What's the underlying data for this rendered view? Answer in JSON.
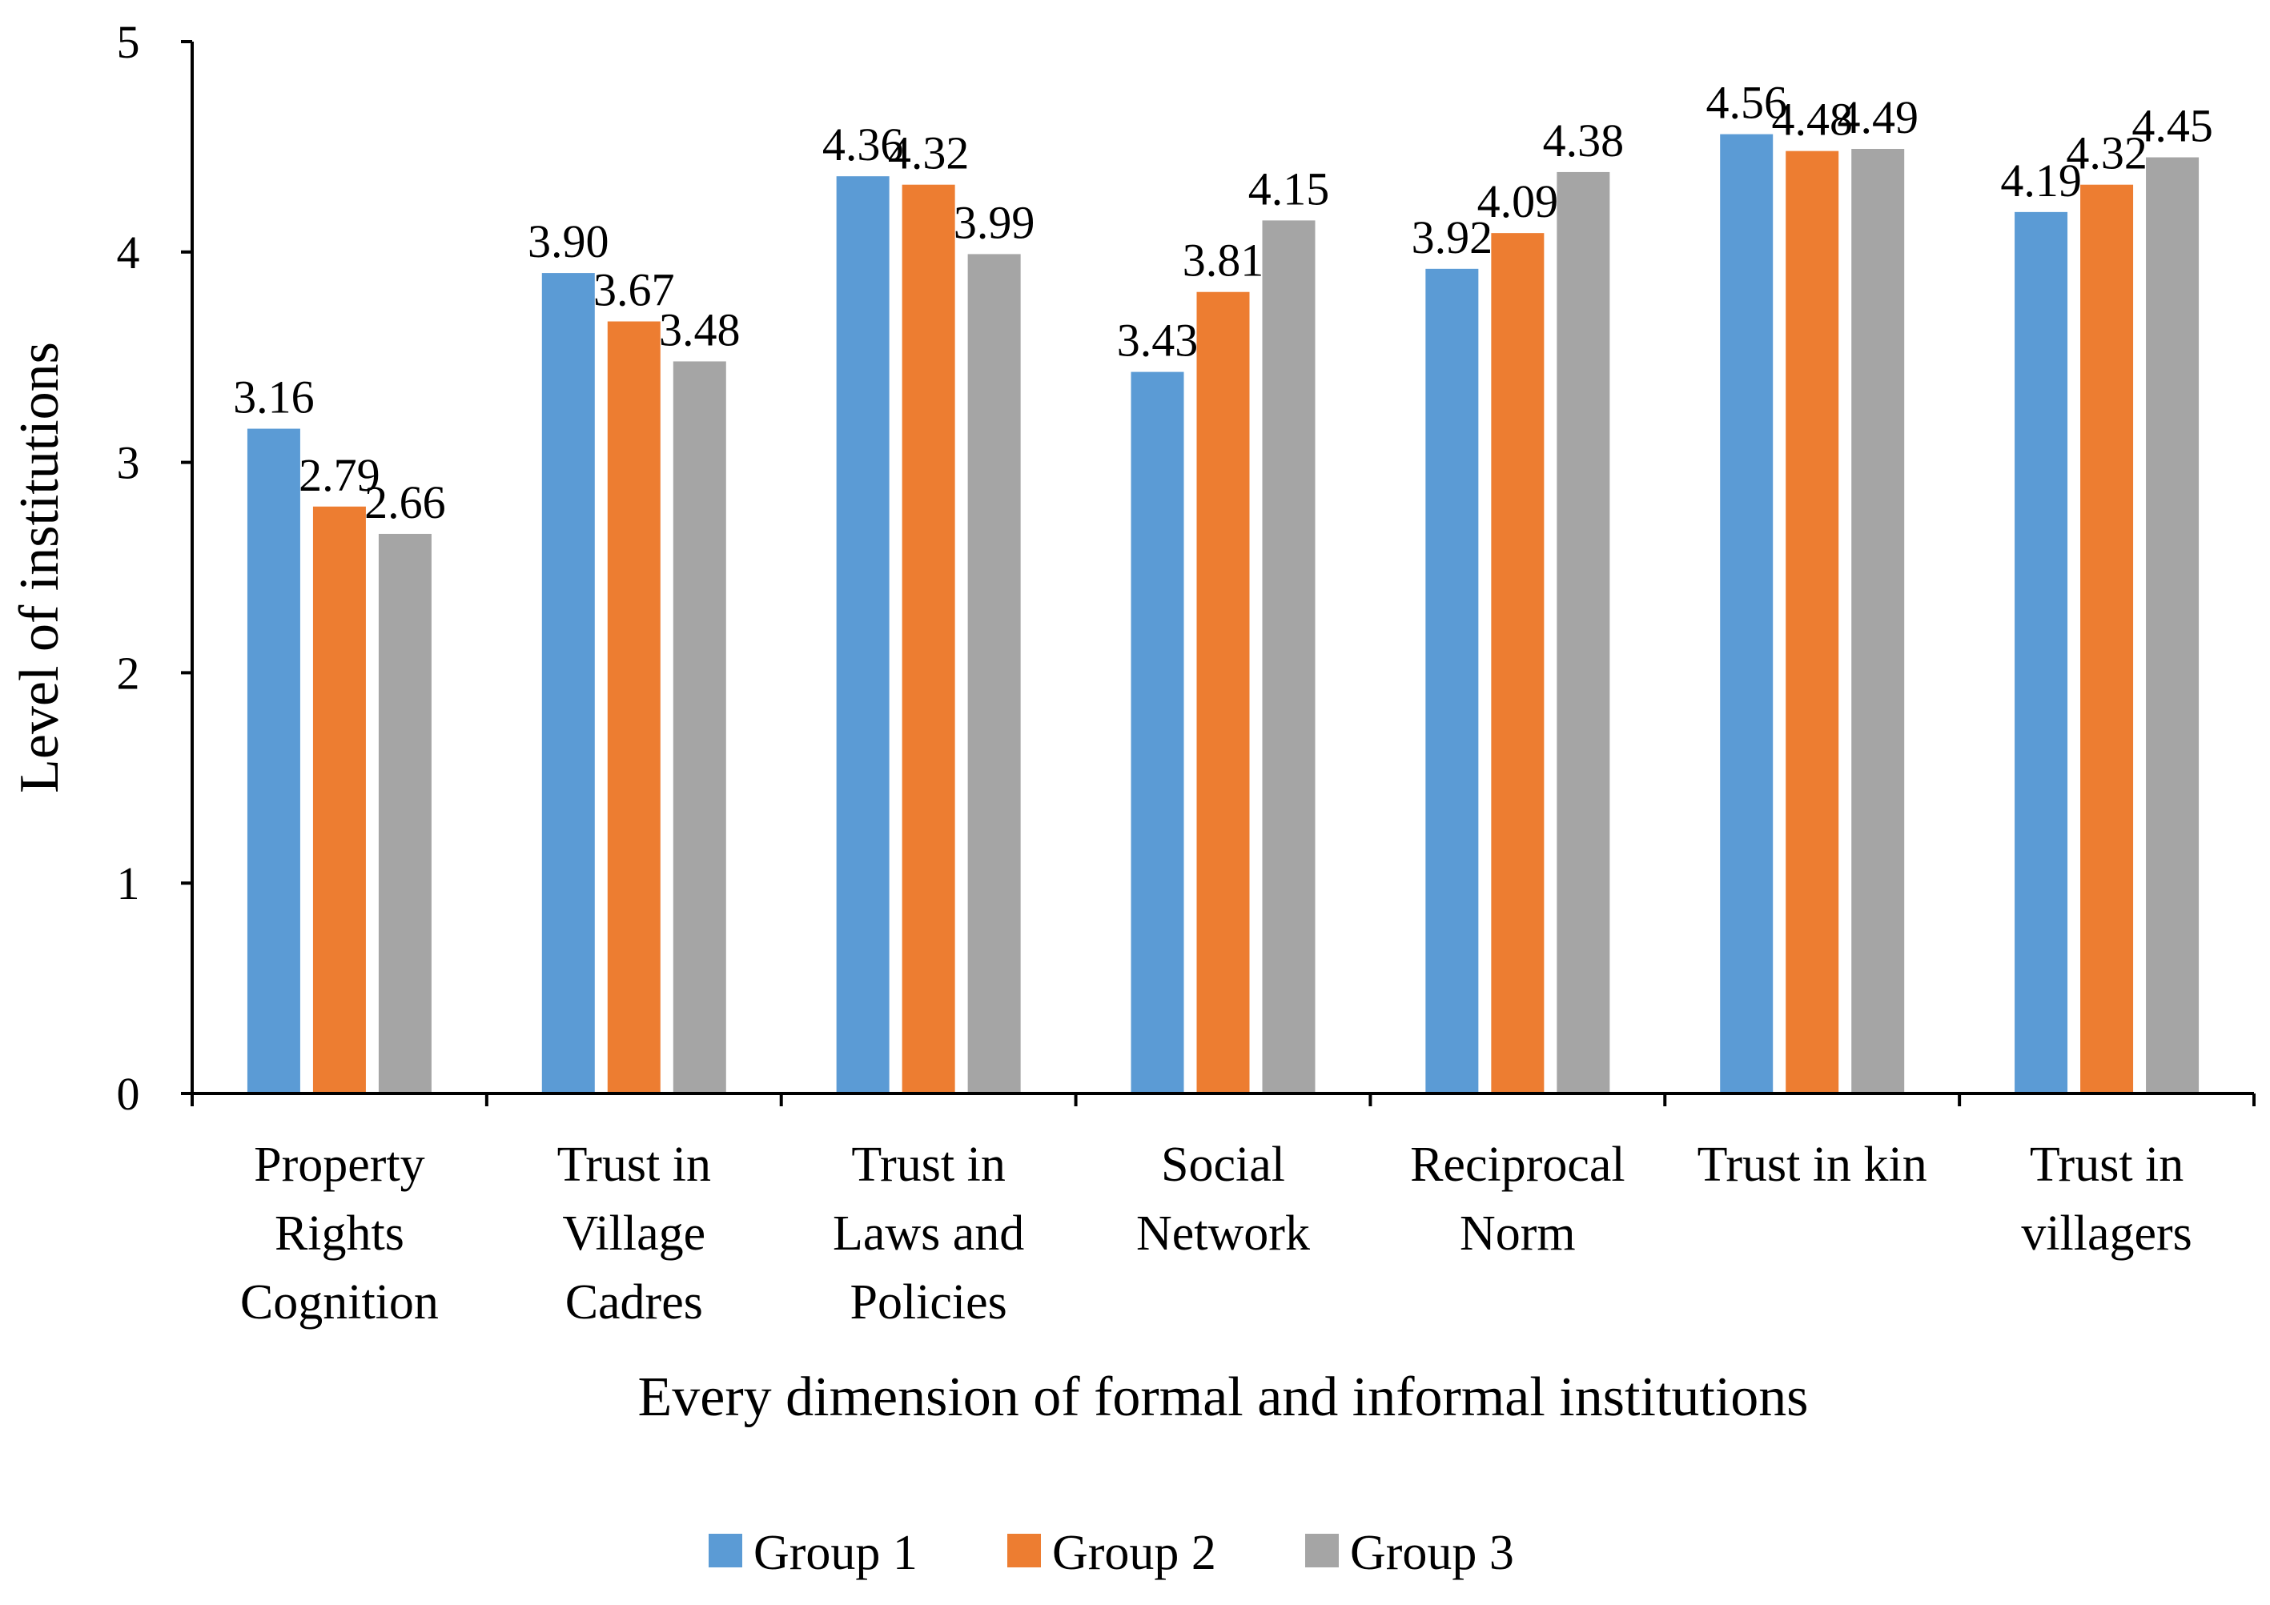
{
  "chart_data": {
    "type": "bar",
    "title": "",
    "xlabel": "Every dimension of formal and informal institutions",
    "ylabel": "Level of institutions",
    "ylim": [
      0,
      5
    ],
    "yticks": [
      "0",
      "1",
      "2",
      "3",
      "4",
      "5"
    ],
    "grid": false,
    "legend_position": "bottom",
    "categories": [
      [
        "Property",
        "Rights",
        "Cognition"
      ],
      [
        "Trust in",
        "Village",
        "Cadres"
      ],
      [
        "Trust in",
        "Laws and",
        "Policies"
      ],
      [
        "Social",
        "Network"
      ],
      [
        "Reciprocal",
        "Norm"
      ],
      [
        "Trust in kin"
      ],
      [
        "Trust in",
        "villagers"
      ]
    ],
    "series": [
      {
        "name": "Group 1",
        "color": "#5B9BD5",
        "values": [
          3.16,
          3.9,
          4.36,
          3.43,
          3.92,
          4.56,
          4.19
        ],
        "labels": [
          "3.16",
          "3.90",
          "4.36",
          "3.43",
          "3.92",
          "4.56",
          "4.19"
        ]
      },
      {
        "name": "Group 2",
        "color": "#ED7D31",
        "values": [
          2.79,
          3.67,
          4.32,
          3.81,
          4.09,
          4.48,
          4.32
        ],
        "labels": [
          "2.79",
          "3.67",
          "4.32",
          "3.81",
          "4.09",
          "4.48",
          "4.32"
        ]
      },
      {
        "name": "Group 3",
        "color": "#A5A5A5",
        "values": [
          2.66,
          3.48,
          3.99,
          4.15,
          4.38,
          4.49,
          4.45
        ],
        "labels": [
          "2.66",
          "3.48",
          "3.99",
          "4.15",
          "4.38",
          "4.49",
          "4.45"
        ]
      }
    ]
  }
}
